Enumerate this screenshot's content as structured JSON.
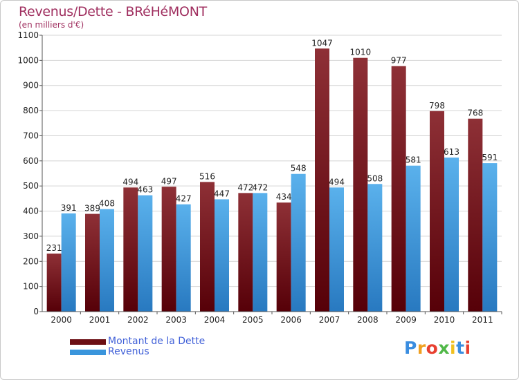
{
  "title": "Revenus/Dette - BRéHéMONT",
  "subtitle": "(en milliers d'€)",
  "colors": {
    "title": "#a03060",
    "dette": "#6b0f14",
    "revenus": "#3a95dc",
    "legend_text": "#4060d8"
  },
  "legend": [
    {
      "label": "Montant de la Dette",
      "color": "#6b0f14"
    },
    {
      "label": "Revenus",
      "color": "#3a95dc"
    }
  ],
  "logo": {
    "text": "Proxiti",
    "letter_colors": [
      "#3a8de0",
      "#f0a020",
      "#e84030",
      "#50b848",
      "#f0c020",
      "#3a8de0",
      "#e84030"
    ]
  },
  "chart_data": {
    "type": "bar",
    "categories": [
      "2000",
      "2001",
      "2002",
      "2003",
      "2004",
      "2005",
      "2006",
      "2007",
      "2008",
      "2009",
      "2010",
      "2011"
    ],
    "series": [
      {
        "name": "Montant de la Dette",
        "values": [
          231,
          389,
          494,
          497,
          516,
          472,
          434,
          1047,
          1010,
          977,
          798,
          768
        ]
      },
      {
        "name": "Revenus",
        "values": [
          391,
          408,
          463,
          427,
          447,
          472,
          548,
          494,
          508,
          581,
          613,
          591
        ]
      }
    ],
    "title": "Revenus/Dette - BRéHéMONT",
    "subtitle": "(en milliers d'€)",
    "ylim": [
      0,
      1100
    ],
    "yticks": [
      0,
      100,
      200,
      300,
      400,
      500,
      600,
      700,
      800,
      900,
      1000,
      1100
    ],
    "grid": true,
    "legend_position": "bottom-left"
  }
}
